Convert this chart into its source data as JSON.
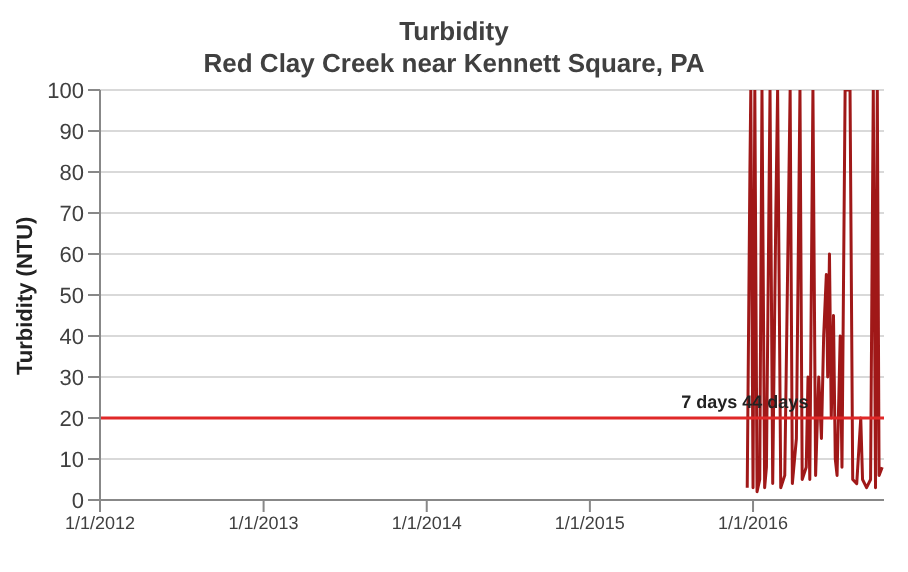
{
  "chart_data": {
    "type": "line",
    "title": "Turbidity",
    "subtitle": "Red Clay Creek near Kennett Square, PA",
    "ylabel": "Turbidity (NTU)",
    "x": [
      "2015-12-19",
      "2015-12-25",
      "2015-12-27",
      "2016-01-01",
      "2016-01-05",
      "2016-01-10",
      "2016-01-16",
      "2016-01-21",
      "2016-01-27",
      "2016-01-31",
      "2016-02-08",
      "2016-02-14",
      "2016-02-21",
      "2016-02-25",
      "2016-03-03",
      "2016-03-12",
      "2016-03-24",
      "2016-03-29",
      "2016-04-07",
      "2016-04-15",
      "2016-04-20",
      "2016-04-29",
      "2016-05-03",
      "2016-05-07",
      "2016-05-14",
      "2016-05-20",
      "2016-05-27",
      "2016-06-02",
      "2016-06-07",
      "2016-06-13",
      "2016-06-16",
      "2016-06-20",
      "2016-06-24",
      "2016-06-29",
      "2016-07-03",
      "2016-07-07",
      "2016-07-14",
      "2016-07-18",
      "2016-07-25",
      "2016-07-29",
      "2016-08-05",
      "2016-08-11",
      "2016-08-20",
      "2016-08-29",
      "2016-09-02",
      "2016-09-11",
      "2016-09-20",
      "2016-09-26",
      "2016-10-01",
      "2016-10-05",
      "2016-10-09",
      "2016-10-16"
    ],
    "series": [
      {
        "color": "#a01818",
        "values": [
          3,
          80,
          100,
          3,
          100,
          2,
          5,
          100,
          3,
          8,
          100,
          4,
          70,
          100,
          3,
          6,
          100,
          4,
          15,
          100,
          5,
          8,
          30,
          5,
          100,
          6,
          30,
          15,
          40,
          55,
          30,
          60,
          20,
          45,
          10,
          6,
          40,
          8,
          100,
          100,
          100,
          5,
          4,
          20,
          5,
          3,
          5,
          100,
          3,
          100,
          6,
          8
        ]
      }
    ],
    "xlim": [
      "2012-01-01",
      "2016-10-20"
    ],
    "xticks": [
      {
        "value": "2012-01-01",
        "label": "1/1/2012"
      },
      {
        "value": "2013-01-01",
        "label": "1/1/2013"
      },
      {
        "value": "2014-01-01",
        "label": "1/1/2014"
      },
      {
        "value": "2015-01-01",
        "label": "1/1/2015"
      },
      {
        "value": "2016-01-01",
        "label": "1/1/2016"
      }
    ],
    "ylim": [
      0,
      100
    ],
    "yticks": [
      0,
      10,
      20,
      30,
      40,
      50,
      60,
      70,
      80,
      90,
      100
    ],
    "ref_lines": [
      {
        "axis": "y",
        "value": 20,
        "color": "#e02828"
      }
    ],
    "annotations": [
      {
        "text": "7 days",
        "x": "2015-09-25",
        "y": 20
      },
      {
        "text": "44 days",
        "x": "2016-02-20",
        "y": 20
      }
    ],
    "grid": "y",
    "legend": false,
    "marker": "none",
    "line_style": "solid"
  }
}
